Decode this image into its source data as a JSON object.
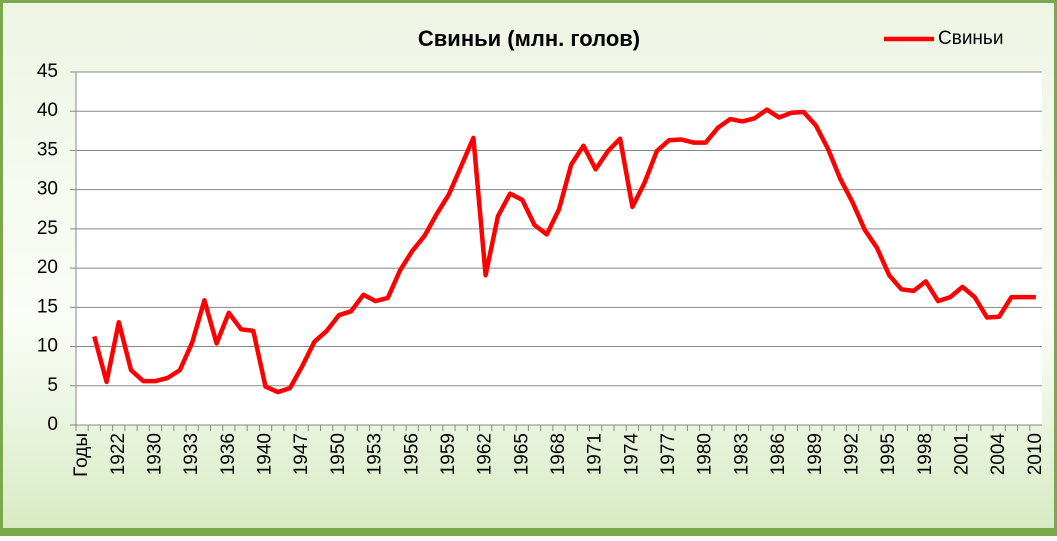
{
  "chart_data": {
    "type": "line",
    "title": "Свиньи (млн. голов)",
    "categories": [
      "Годы",
      null,
      null,
      "1922",
      null,
      null,
      "1930",
      null,
      null,
      "1933",
      null,
      null,
      "1936",
      null,
      null,
      "1940",
      null,
      null,
      "1947",
      null,
      null,
      "1950",
      null,
      null,
      "1953",
      null,
      null,
      "1956",
      null,
      null,
      "1959",
      null,
      null,
      "1962",
      null,
      null,
      "1965",
      null,
      null,
      "1968",
      null,
      null,
      "1971",
      null,
      null,
      "1974",
      null,
      null,
      "1977",
      null,
      null,
      "1980",
      null,
      null,
      "1983",
      null,
      null,
      "1986",
      null,
      null,
      "1989",
      null,
      null,
      "1992",
      null,
      null,
      "1995",
      null,
      null,
      "1998",
      null,
      null,
      "2001",
      null,
      null,
      "2004",
      null,
      null,
      "2010"
    ],
    "series": [
      {
        "name": "Свиньи",
        "color": "#ff0000",
        "values": [
          null,
          11.3,
          5.5,
          13.1,
          7.0,
          5.6,
          5.6,
          6.0,
          7.0,
          10.5,
          15.9,
          10.4,
          14.3,
          12.2,
          12.0,
          4.9,
          4.2,
          4.7,
          7.5,
          10.6,
          12.0,
          14.0,
          14.5,
          16.6,
          15.8,
          16.2,
          19.7,
          22.2,
          24.1,
          26.9,
          29.4,
          33.0,
          36.6,
          19.1,
          26.6,
          29.5,
          28.7,
          25.5,
          24.3,
          27.5,
          33.2,
          35.6,
          32.6,
          34.9,
          36.5,
          27.8,
          30.9,
          34.9,
          36.3,
          36.4,
          36.0,
          36.0,
          37.9,
          39.0,
          38.7,
          39.1,
          40.2,
          39.2,
          39.8,
          39.9,
          38.2,
          35.2,
          31.4,
          28.4,
          24.9,
          22.6,
          19.1,
          17.3,
          17.1,
          18.3,
          15.8,
          16.3,
          17.6,
          16.3,
          13.7,
          13.8,
          16.3,
          16.3,
          16.3
        ]
      }
    ],
    "ylim": [
      0,
      45
    ],
    "yticks": [
      0,
      5,
      10,
      15,
      20,
      25,
      30,
      35,
      40,
      45
    ],
    "grid": true,
    "legend": "top-right"
  }
}
